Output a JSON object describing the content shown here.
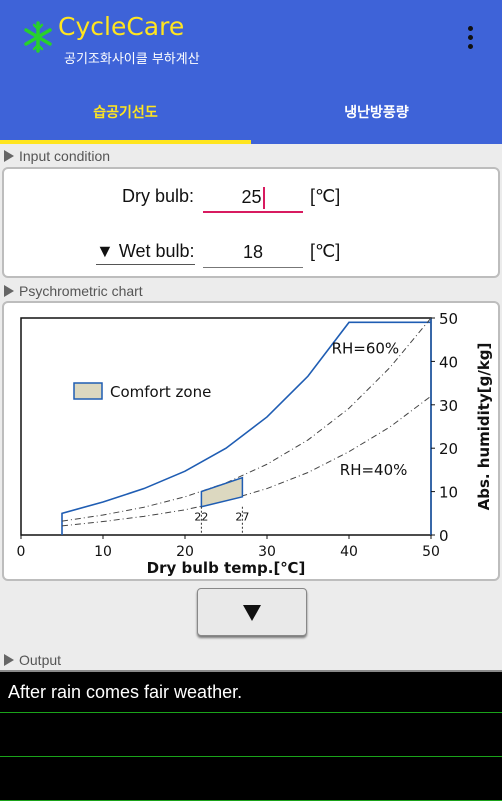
{
  "app": {
    "title": "CycleCare",
    "subtitle": "공기조화사이클 부하계산"
  },
  "tabs": [
    {
      "label": "습공기선도",
      "active": true
    },
    {
      "label": "냉난방풍량",
      "active": false
    }
  ],
  "input_section": {
    "header": "Input condition",
    "dry_bulb_label": "Dry bulb:",
    "dry_bulb_value": "25",
    "dry_bulb_unit": "[℃]",
    "wet_bulb_label": "▼ Wet bulb:",
    "wet_bulb_value": "18",
    "wet_bulb_unit": "[℃]"
  },
  "chart_section": {
    "header": "Psychrometric chart"
  },
  "output_section": {
    "header": "Output",
    "text": "After rain comes fair weather."
  },
  "chart_data": {
    "type": "line",
    "xlabel": "Dry bulb temp.[℃]",
    "ylabel": "Abs. humidity[g/kg]",
    "xlim": [
      0,
      50
    ],
    "ylim": [
      0,
      50
    ],
    "x_ticks": [
      0,
      10,
      20,
      30,
      40,
      50
    ],
    "y_ticks": [
      0,
      10,
      20,
      30,
      40,
      50
    ],
    "legend": "Comfort zone",
    "grid": false,
    "series": [
      {
        "style": "saturation",
        "x": [
          5,
          5,
          10,
          15,
          20,
          25,
          30,
          35,
          40,
          50
        ],
        "y": [
          0,
          5,
          7.6,
          10.7,
          14.7,
          20.0,
          27.2,
          36.6,
          49,
          49
        ]
      },
      {
        "style": "dashdot",
        "name": "RH=60%",
        "x": [
          5,
          10,
          15,
          20,
          25,
          30,
          35,
          40,
          45,
          50
        ],
        "y": [
          3.2,
          4.6,
          6.4,
          8.8,
          12.0,
          16.3,
          21.9,
          29.2,
          38.6,
          50
        ]
      },
      {
        "style": "dashdot",
        "name": "RH=40%",
        "x": [
          5,
          10,
          15,
          20,
          25,
          30,
          35,
          40,
          45,
          50
        ],
        "y": [
          2.1,
          3.1,
          4.3,
          5.8,
          7.9,
          10.7,
          14.4,
          19.2,
          24.9,
          32.0
        ]
      }
    ],
    "comfort_zone": {
      "x": [
        22,
        27,
        27,
        22
      ],
      "y": [
        6.5,
        8.8,
        13.2,
        10.0
      ]
    },
    "annotations": [
      {
        "text": "RH=60%",
        "x": 42,
        "y": 43
      },
      {
        "text": "RH=40%",
        "x": 43,
        "y": 15
      },
      {
        "text": "22",
        "x": 22,
        "y": 2
      },
      {
        "text": "27",
        "x": 27,
        "y": 2
      }
    ],
    "colors": {
      "curve": "#1f5db3",
      "zone_fill": "#dcd8c0"
    }
  }
}
